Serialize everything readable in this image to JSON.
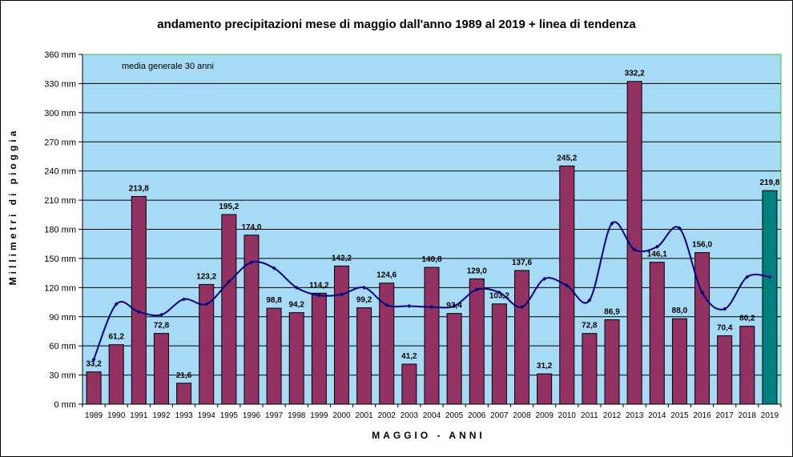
{
  "chart_data": {
    "type": "bar",
    "title": "andamento precipitazioni mese di maggio dall'anno 1989 al 2019 + linea di tendenza",
    "xlabel": "MAGGIO - ANNI",
    "ylabel": "Millimetri di pioggia",
    "annotation": "media generale 30 anni",
    "ylim": [
      0,
      360
    ],
    "y_ticks": [
      "0 mm",
      "30 mm",
      "60 mm",
      "90 mm",
      "120 mm",
      "150 mm",
      "180 mm",
      "210 mm",
      "240 mm",
      "270 mm",
      "300 mm",
      "330 mm",
      "360 mm"
    ],
    "grid": true,
    "legend": "none",
    "categories": [
      "1989",
      "1990",
      "1991",
      "1992",
      "1993",
      "1994",
      "1995",
      "1996",
      "1997",
      "1998",
      "1999",
      "2000",
      "2001",
      "2002",
      "2003",
      "2004",
      "2005",
      "2006",
      "2007",
      "2008",
      "2009",
      "2010",
      "2011",
      "2012",
      "2013",
      "2014",
      "2015",
      "2016",
      "2017",
      "2018",
      "2019"
    ],
    "values": [
      33.2,
      61.2,
      213.8,
      72.8,
      21.6,
      123.2,
      195.2,
      174.0,
      98.8,
      94.2,
      114.2,
      142.2,
      99.2,
      124.6,
      41.2,
      140.8,
      93.4,
      129.0,
      103.2,
      137.6,
      31.2,
      245.2,
      72.8,
      86.9,
      332.2,
      146.1,
      88.0,
      156.0,
      70.4,
      80.2,
      219.8
    ],
    "value_labels": [
      "33,2",
      "61,2",
      "213,8",
      "72,8",
      "21,6",
      "123,2",
      "195,2",
      "174,0",
      "98,8",
      "94,2",
      "114,2",
      "142,2",
      "99,2",
      "124,6",
      "41,2",
      "140,8",
      "93,4",
      "129,0",
      "103,2",
      "137,6",
      "31,2",
      "245,2",
      "72,8",
      "86,9",
      "332,2",
      "146,1",
      "88,0",
      "156,0",
      "70,4",
      "80,2",
      "219,8"
    ],
    "trend_values": [
      46,
      103,
      95,
      92,
      108,
      103,
      126,
      146,
      140,
      120,
      112,
      113,
      120,
      102,
      101,
      100,
      101,
      118,
      115,
      100,
      129,
      122,
      107,
      186,
      159,
      162,
      181,
      115,
      98,
      131,
      131
    ],
    "colors": {
      "plot_background": "#a6daf5",
      "bar": "#933262",
      "highlight_bar": "#007f7f",
      "highlight_label": "#007f7f",
      "trend_line": "#00007f",
      "gridline": "#000000",
      "plot_border": "#33cc33"
    }
  }
}
